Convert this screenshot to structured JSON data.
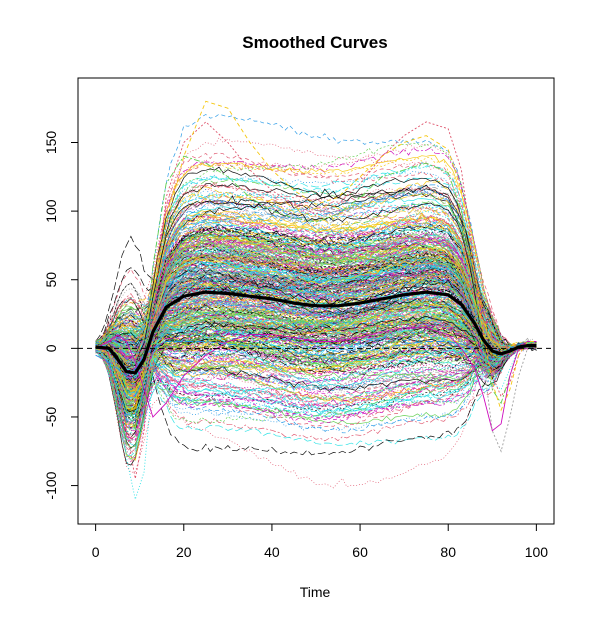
{
  "chart_data": {
    "type": "line",
    "title": "Smoothed Curves",
    "xlabel": "Time",
    "ylabel": "",
    "xlim": [
      -4,
      104
    ],
    "ylim": [
      -128,
      197
    ],
    "xticks": [
      0,
      20,
      40,
      60,
      80,
      100
    ],
    "yticks": [
      -100,
      -50,
      0,
      50,
      100,
      150
    ],
    "xtick_labels": [
      "0",
      "20",
      "40",
      "60",
      "80",
      "100"
    ],
    "ytick_labels": [
      "-100",
      "-50",
      "0",
      "50",
      "100",
      "150"
    ],
    "reference_line": {
      "y": 0,
      "style": "dashed"
    },
    "grid": false,
    "legend": "none",
    "series": [
      {
        "role": "mean",
        "style": "thick solid black",
        "x": [
          0,
          3,
          5,
          7,
          9,
          11,
          13,
          16,
          20,
          25,
          30,
          35,
          40,
          45,
          50,
          55,
          60,
          65,
          70,
          75,
          80,
          83,
          86,
          88,
          90,
          92,
          94,
          96,
          98,
          100
        ],
        "y": [
          1,
          0,
          -8,
          -17,
          -18,
          -8,
          12,
          30,
          38,
          41,
          40,
          38,
          36,
          33,
          31,
          31,
          33,
          36,
          39,
          41,
          39,
          32,
          18,
          6,
          -2,
          -4,
          -2,
          1,
          2,
          2
        ]
      },
      {
        "role": "sample",
        "x": [
          0,
          3,
          5,
          7,
          9,
          11,
          13,
          16,
          20,
          25,
          30,
          35,
          40,
          45,
          50,
          55,
          60,
          65,
          70,
          75,
          80,
          83,
          86,
          88,
          90,
          92,
          94,
          96,
          98,
          100
        ],
        "y": [
          0,
          -3,
          -20,
          -60,
          -95,
          -60,
          20,
          110,
          150,
          165,
          150,
          130,
          115,
          105,
          98,
          105,
          120,
          140,
          155,
          165,
          160,
          130,
          60,
          10,
          -20,
          -35,
          -25,
          -5,
          5,
          5
        ]
      },
      {
        "role": "sample",
        "x": [
          0,
          3,
          5,
          7,
          9,
          11,
          13,
          16,
          20,
          25,
          30,
          35,
          40,
          45,
          50,
          55,
          60,
          65,
          70,
          75,
          80,
          83,
          86,
          88,
          90,
          92,
          94,
          96,
          98,
          100
        ],
        "y": [
          5,
          10,
          0,
          -30,
          -60,
          -20,
          60,
          120,
          140,
          135,
          125,
          110,
          100,
          95,
          92,
          98,
          110,
          125,
          130,
          135,
          128,
          100,
          45,
          0,
          -30,
          -40,
          -20,
          0,
          5,
          5
        ]
      },
      {
        "role": "sample",
        "x": [
          0,
          3,
          5,
          7,
          9,
          11,
          13,
          16,
          20,
          25,
          30,
          35,
          40,
          45,
          50,
          55,
          60,
          65,
          70,
          75,
          80,
          83,
          86,
          88,
          90,
          92,
          94,
          96,
          98,
          100
        ],
        "y": [
          -5,
          -10,
          -15,
          -20,
          -15,
          -5,
          0,
          5,
          5,
          5,
          3,
          2,
          0,
          -3,
          -5,
          -5,
          -3,
          0,
          3,
          5,
          5,
          3,
          0,
          -5,
          -8,
          -5,
          0,
          3,
          5,
          5
        ]
      },
      {
        "role": "sample",
        "x": [
          0,
          3,
          5,
          7,
          9,
          11,
          13,
          16,
          20,
          25,
          30,
          35,
          40,
          45,
          50,
          55,
          60,
          65,
          70,
          75,
          80,
          83,
          86,
          88,
          90,
          92,
          94,
          96,
          98,
          100
        ],
        "y": [
          2,
          0,
          -30,
          -80,
          -110,
          -90,
          -20,
          40,
          80,
          90,
          85,
          80,
          75,
          70,
          68,
          70,
          75,
          85,
          95,
          100,
          95,
          75,
          30,
          -5,
          -25,
          -30,
          -15,
          0,
          5,
          5
        ]
      },
      {
        "role": "sample",
        "x": [
          0,
          3,
          5,
          7,
          9,
          11,
          13,
          16,
          20,
          25,
          30,
          35,
          40,
          45,
          50,
          55,
          60,
          65,
          70,
          75,
          80,
          83,
          86,
          88,
          90,
          92,
          94,
          96,
          98,
          100
        ],
        "y": [
          0,
          5,
          10,
          5,
          -10,
          -30,
          -50,
          -40,
          -20,
          -5,
          5,
          10,
          10,
          8,
          5,
          5,
          8,
          12,
          15,
          15,
          10,
          0,
          -15,
          -35,
          -60,
          -55,
          -20,
          0,
          5,
          5
        ]
      },
      {
        "role": "sample",
        "x": [
          0,
          3,
          5,
          7,
          9,
          11,
          13,
          16,
          20,
          25,
          30,
          35,
          40,
          45,
          50,
          55,
          60,
          65,
          70,
          75,
          80,
          83,
          86,
          88,
          90,
          92,
          94,
          96,
          98,
          100
        ],
        "y": [
          0,
          15,
          20,
          15,
          5,
          10,
          40,
          90,
          140,
          180,
          175,
          150,
          130,
          115,
          105,
          110,
          125,
          140,
          150,
          155,
          145,
          115,
          55,
          10,
          -25,
          -45,
          -30,
          -5,
          5,
          5
        ]
      },
      {
        "role": "sample",
        "x": [
          0,
          3,
          5,
          7,
          9,
          11,
          13,
          16,
          20,
          25,
          30,
          35,
          40,
          45,
          50,
          55,
          60,
          65,
          70,
          75,
          80,
          83,
          86,
          88,
          90,
          92,
          94,
          96,
          98,
          100
        ],
        "y": [
          0,
          -5,
          -10,
          -5,
          0,
          5,
          10,
          15,
          20,
          20,
          18,
          15,
          12,
          10,
          8,
          8,
          10,
          12,
          15,
          18,
          15,
          10,
          0,
          -10,
          -60,
          -75,
          -50,
          -20,
          0,
          5
        ]
      }
    ]
  },
  "colors": {
    "background": "#ffffff",
    "axis": "#000000",
    "mean_line": "#000000",
    "sample_palette": [
      "#000000",
      "#df536b",
      "#61d04f",
      "#2297e6",
      "#28e2e5",
      "#cd0bbc",
      "#f5c710",
      "#9e9e9e"
    ]
  }
}
